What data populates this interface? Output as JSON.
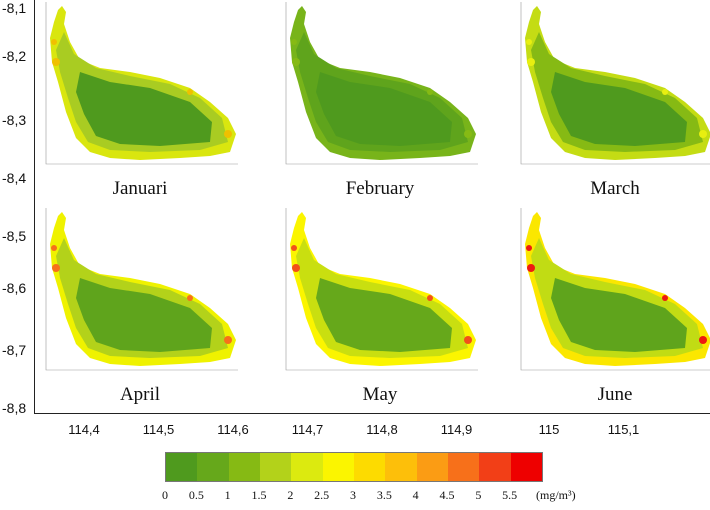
{
  "y_axis": [
    "-8,1",
    "-8,2",
    "-8,3",
    "-8,4",
    "-8,5",
    "-8,6",
    "-8,7",
    "-8,8"
  ],
  "x_axis": [
    "114,4",
    "114,5",
    "114,6",
    "114,7",
    "114,8",
    "114,9",
    "115",
    "115,1"
  ],
  "panels": [
    {
      "title": "Januari"
    },
    {
      "title": "February"
    },
    {
      "title": "March"
    },
    {
      "title": "April"
    },
    {
      "title": "May"
    },
    {
      "title": "June"
    }
  ],
  "legend": {
    "labels": [
      "0",
      "0.5",
      "1",
      "1.5",
      "2",
      "2.5",
      "3",
      "3.5",
      "4",
      "4.5",
      "5",
      "5.5"
    ],
    "unit": "(mg/m³)",
    "colors": [
      "#4f9a1e",
      "#66a81b",
      "#86ba14",
      "#b3d21a",
      "#dcea0f",
      "#fbf500",
      "#fddb00",
      "#fdbf0a",
      "#fb9c14",
      "#f7701a",
      "#f23f17",
      "#ee0000"
    ]
  },
  "panel_styles": [
    {
      "base": "#4f9a1e",
      "coast": "#a9cc22",
      "edge": "#d9e60f",
      "hot": "#f0c000"
    },
    {
      "base": "#4f9a1e",
      "coast": "#5fa41c",
      "edge": "#78b41a",
      "hot": "#86ba14"
    },
    {
      "base": "#4f9a1e",
      "coast": "#86ba14",
      "edge": "#c4dc14",
      "hot": "#e8ef10"
    },
    {
      "base": "#5fa41c",
      "coast": "#b3d21a",
      "edge": "#eff200",
      "hot": "#f7701a"
    },
    {
      "base": "#66a81b",
      "coast": "#c9df10",
      "edge": "#fbf500",
      "hot": "#f2501a"
    },
    {
      "base": "#5fa41c",
      "coast": "#c1dc14",
      "edge": "#fbe700",
      "hot": "#ee1a10"
    }
  ]
}
